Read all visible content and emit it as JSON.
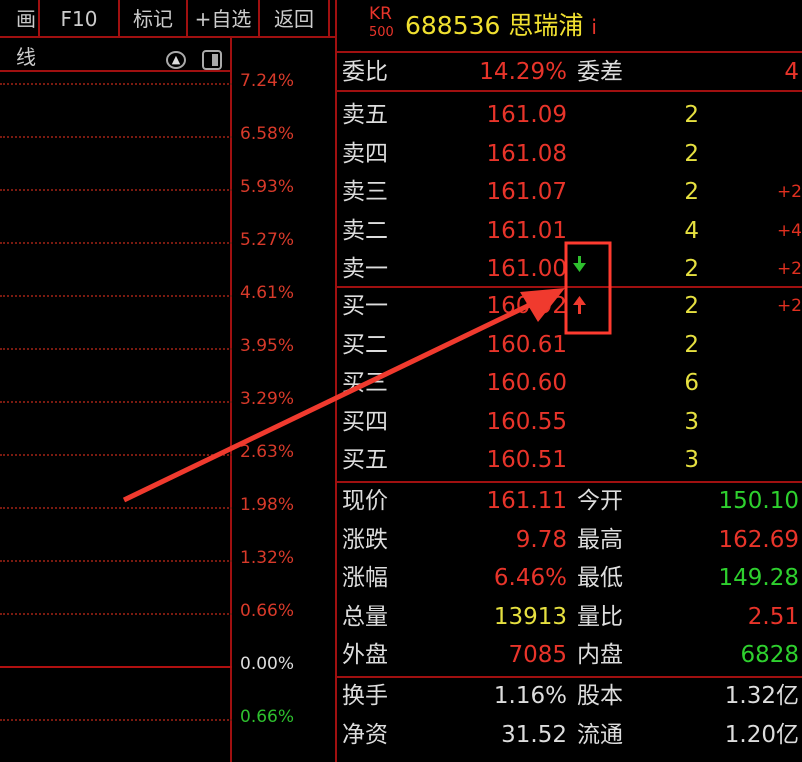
{
  "toolbar": {
    "items": [
      "画线",
      "F10",
      "标记",
      "+自选",
      "返回"
    ]
  },
  "chart": {
    "axis_labels": [
      {
        "text": "7.24%",
        "color": "#d83a2a"
      },
      {
        "text": "6.58%",
        "color": "#d83a2a"
      },
      {
        "text": "5.93%",
        "color": "#d83a2a"
      },
      {
        "text": "5.27%",
        "color": "#d83a2a"
      },
      {
        "text": "4.61%",
        "color": "#d83a2a"
      },
      {
        "text": "3.95%",
        "color": "#d83a2a"
      },
      {
        "text": "3.29%",
        "color": "#d83a2a"
      },
      {
        "text": "2.63%",
        "color": "#d83a2a"
      },
      {
        "text": "1.98%",
        "color": "#d83a2a"
      },
      {
        "text": "1.32%",
        "color": "#d83a2a"
      },
      {
        "text": "0.66%",
        "color": "#d83a2a"
      },
      {
        "text": "0.00%",
        "color": "#dddddd"
      },
      {
        "text": "0.66%",
        "color": "#2ec02e"
      }
    ]
  },
  "header": {
    "badge_top": "KR",
    "badge_bottom": "500",
    "code": "688536",
    "name": "思瑞浦",
    "info": "i"
  },
  "ratio": {
    "label": "委比",
    "value": "14.29%",
    "diff_label": "委差",
    "diff_value": "4"
  },
  "sell": [
    {
      "label": "卖五",
      "price": "161.09",
      "vol": "2",
      "chg": ""
    },
    {
      "label": "卖四",
      "price": "161.08",
      "vol": "2",
      "chg": ""
    },
    {
      "label": "卖三",
      "price": "161.07",
      "vol": "2",
      "chg": "+2"
    },
    {
      "label": "卖二",
      "price": "161.01",
      "vol": "4",
      "chg": "+4"
    },
    {
      "label": "卖一",
      "price": "161.00",
      "vol": "2",
      "chg": "+2"
    }
  ],
  "buy": [
    {
      "label": "买一",
      "price": "160.92",
      "vol": "2",
      "chg": "+2"
    },
    {
      "label": "买二",
      "price": "160.61",
      "vol": "2",
      "chg": ""
    },
    {
      "label": "买三",
      "price": "160.60",
      "vol": "6",
      "chg": ""
    },
    {
      "label": "买四",
      "price": "160.55",
      "vol": "3",
      "chg": ""
    },
    {
      "label": "买五",
      "price": "160.51",
      "vol": "3",
      "chg": ""
    }
  ],
  "stats": [
    {
      "l1": "现价",
      "v1": "161.11",
      "c1": "red",
      "l2": "今开",
      "v2": "150.10",
      "c2": "grn"
    },
    {
      "l1": "涨跌",
      "v1": "9.78",
      "c1": "red",
      "l2": "最高",
      "v2": "162.69",
      "c2": "red"
    },
    {
      "l1": "涨幅",
      "v1": "6.46%",
      "c1": "red",
      "l2": "最低",
      "v2": "149.28",
      "c2": "grn"
    },
    {
      "l1": "总量",
      "v1": "13913",
      "c1": "yel",
      "l2": "量比",
      "v2": "2.51",
      "c2": "red"
    },
    {
      "l1": "外盘",
      "v1": "7085",
      "c1": "red",
      "l2": "内盘",
      "v2": "6828",
      "c2": "grn"
    }
  ],
  "fundamentals": [
    {
      "l1": "换手",
      "v1": "1.16%",
      "l2": "股本",
      "v2": "1.32亿"
    },
    {
      "l1": "净资",
      "v1": "31.52",
      "l2": "流通",
      "v2": "1.20亿"
    }
  ],
  "annotation": {
    "down_arrow": "arrow-down-icon",
    "up_arrow": "arrow-up-icon",
    "highlight_color": "#ff3b30"
  }
}
